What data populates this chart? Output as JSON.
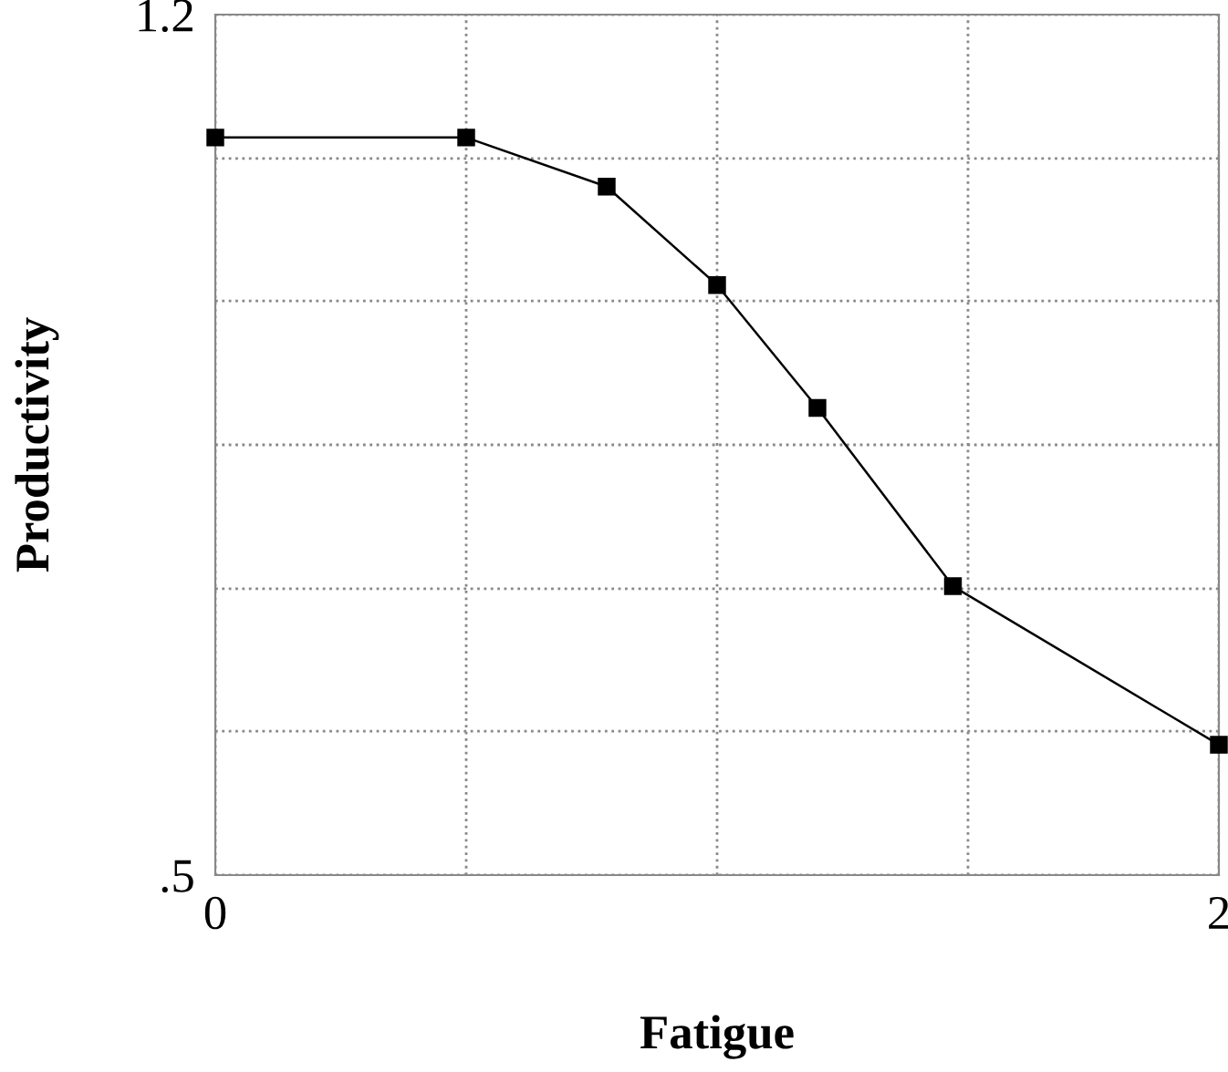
{
  "chart_data": {
    "type": "line",
    "xlabel": "Fatigue",
    "ylabel": "Productivity",
    "x": [
      0,
      0.5,
      0.78,
      1.0,
      1.2,
      1.47,
      2.0
    ],
    "values": [
      1.1,
      1.1,
      1.06,
      0.98,
      0.88,
      0.735,
      0.606
    ],
    "color": "#000000",
    "marker": "square",
    "line_style": "solid",
    "xlim": [
      0,
      2
    ],
    "ylim": [
      0.5,
      1.2
    ],
    "xticks": [
      0,
      {
        "value": 0.5,
        "label": null
      },
      {
        "value": 1.0,
        "label": null
      },
      {
        "value": 1.5,
        "label": null
      },
      2
    ],
    "yticks": [
      {
        "value": 0.5,
        "label": ".5"
      },
      {
        "value": 0.617,
        "label": null
      },
      {
        "value": 0.733,
        "label": null
      },
      {
        "value": 0.85,
        "label": null
      },
      {
        "value": 0.967,
        "label": null
      },
      {
        "value": 1.083,
        "label": null
      },
      1.2
    ],
    "grid": true
  }
}
